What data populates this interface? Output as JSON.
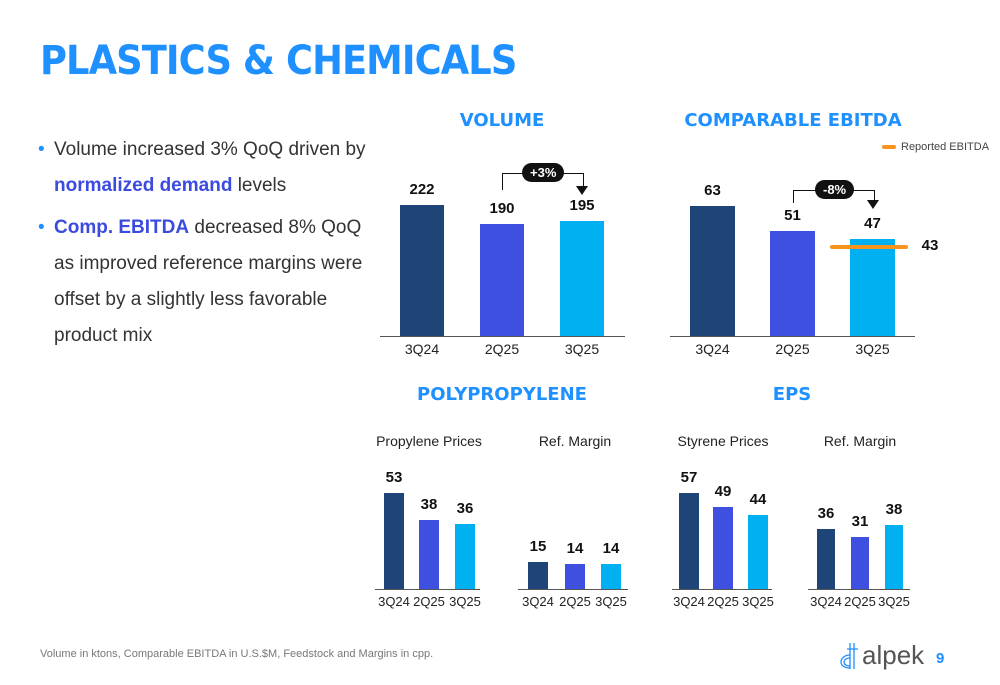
{
  "title": "PLASTICS & CHEMICALS",
  "bullets": [
    {
      "pre": "Volume increased 3% QoQ driven by ",
      "bold": "normalized demand",
      "post": " levels"
    },
    {
      "pre": "",
      "bold": "Comp. EBITDA",
      "post": " decreased 8% QoQ  as improved reference margins were offset by a slightly less favorable product mix"
    }
  ],
  "colors": {
    "c1": "#1f4477",
    "c2": "#3f4fe0",
    "c3": "#00b0f0",
    "reported": "#f7941d",
    "title": "#1e90ff"
  },
  "chart_data": [
    {
      "id": "volume",
      "type": "bar",
      "title": "VOLUME",
      "categories": [
        "3Q24",
        "2Q25",
        "3Q25"
      ],
      "values": [
        222,
        190,
        195
      ],
      "annotation": "+3%"
    },
    {
      "id": "ebitda",
      "type": "bar",
      "title": "COMPARABLE EBITDA",
      "categories": [
        "3Q24",
        "2Q25",
        "3Q25"
      ],
      "values": [
        63,
        51,
        47
      ],
      "annotation": "-8%",
      "reported": {
        "label": "Reported EBITDA",
        "value": 43,
        "display": "43"
      }
    },
    {
      "id": "pp_prices",
      "type": "bar",
      "group_title": "POLYPROPYLENE",
      "title": "Propylene Prices",
      "categories": [
        "3Q24",
        "2Q25",
        "3Q25"
      ],
      "values": [
        53,
        38,
        36
      ]
    },
    {
      "id": "pp_margin",
      "type": "bar",
      "title": "Ref. Margin",
      "categories": [
        "3Q24",
        "2Q25",
        "3Q25"
      ],
      "values": [
        15,
        14,
        14
      ]
    },
    {
      "id": "eps_prices",
      "type": "bar",
      "group_title": "EPS",
      "title": "Styrene Prices",
      "categories": [
        "3Q24",
        "2Q25",
        "3Q25"
      ],
      "values": [
        57,
        49,
        44
      ]
    },
    {
      "id": "eps_margin",
      "type": "bar",
      "title": "Ref. Margin",
      "categories": [
        "3Q24",
        "2Q25",
        "3Q25"
      ],
      "values": [
        36,
        31,
        38
      ]
    }
  ],
  "footer": "Volume in ktons, Comparable EBITDA in U.S.$M, Feedstock and Margins in cpp.",
  "logo": "alpek",
  "page_number": "9"
}
